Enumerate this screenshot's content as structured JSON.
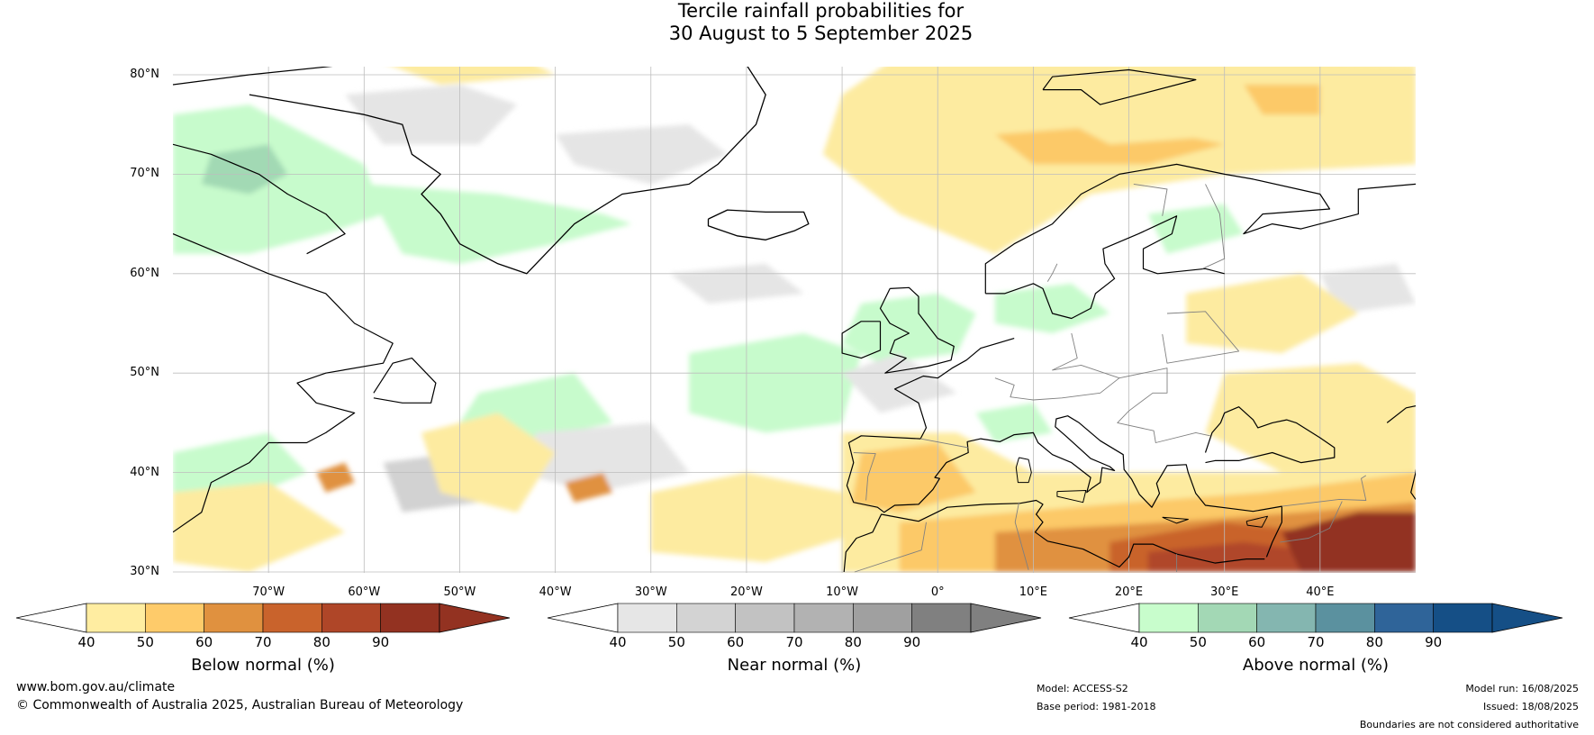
{
  "title_line1": "Tercile rainfall probabilities for",
  "title_line2": "30 August to 5 September 2025",
  "map": {
    "lat_labels": [
      "80°N",
      "70°N",
      "60°N",
      "50°N",
      "40°N",
      "30°N"
    ],
    "lon_labels": [
      "70°W",
      "60°W",
      "50°W",
      "40°W",
      "30°W",
      "20°W",
      "10°W",
      "0°",
      "10°E",
      "20°E",
      "30°E",
      "40°E"
    ],
    "colors": {
      "ocean_background": "#ffffff",
      "below": [
        "#fdeba0",
        "#fcc968",
        "#e0913f",
        "#c9632c",
        "#b0472a",
        "#923322"
      ],
      "near": [
        "#e5e5e5",
        "#d2d2d2",
        "#c3c3c3",
        "#b3b3b3",
        "#9e9e9e",
        "#808080"
      ],
      "above": [
        "#c7fbcc",
        "#a2d9b4",
        "#84b9b0",
        "#5b93a0",
        "#31659b",
        "#184f85"
      ],
      "coastline": "#000000",
      "borders": "#808080",
      "gridlines": "#bdbdbd"
    }
  },
  "colorbars": [
    {
      "label": "Below normal (%)",
      "ticks": [
        "40",
        "50",
        "60",
        "70",
        "80",
        "90"
      ],
      "colors": [
        "#ffeda1",
        "#fecb6a",
        "#e0913f",
        "#c9632c",
        "#af4628",
        "#933221"
      ],
      "arrow_left": "#ffffff",
      "arrow_right": "#933221"
    },
    {
      "label": "Near normal (%)",
      "ticks": [
        "40",
        "50",
        "60",
        "70",
        "80",
        "90"
      ],
      "colors": [
        "#e6e6e6",
        "#d3d3d3",
        "#c2c2c2",
        "#b2b2b2",
        "#a0a0a0",
        "#808080"
      ],
      "arrow_left": "#ffffff",
      "arrow_right": "#808080"
    },
    {
      "label": "Above normal (%)",
      "ticks": [
        "40",
        "50",
        "60",
        "70",
        "80",
        "90"
      ],
      "colors": [
        "#c8fdcc",
        "#a3d8b5",
        "#84b6b0",
        "#5b919f",
        "#2f6499",
        "#154f86"
      ],
      "arrow_left": "#ffffff",
      "arrow_right": "#154f86"
    }
  ],
  "footer": {
    "website": "www.bom.gov.au/climate",
    "copyright": "© Commonwealth of Australia 2025, Australian Bureau of Meteorology",
    "model": "Model: ACCESS-S2",
    "base_period": "Base period: 1981-2018",
    "model_run": "Model run: 16/08/2025",
    "issued": "Issued: 18/08/2025",
    "disclaimer": "Boundaries are not considered authoritative"
  }
}
